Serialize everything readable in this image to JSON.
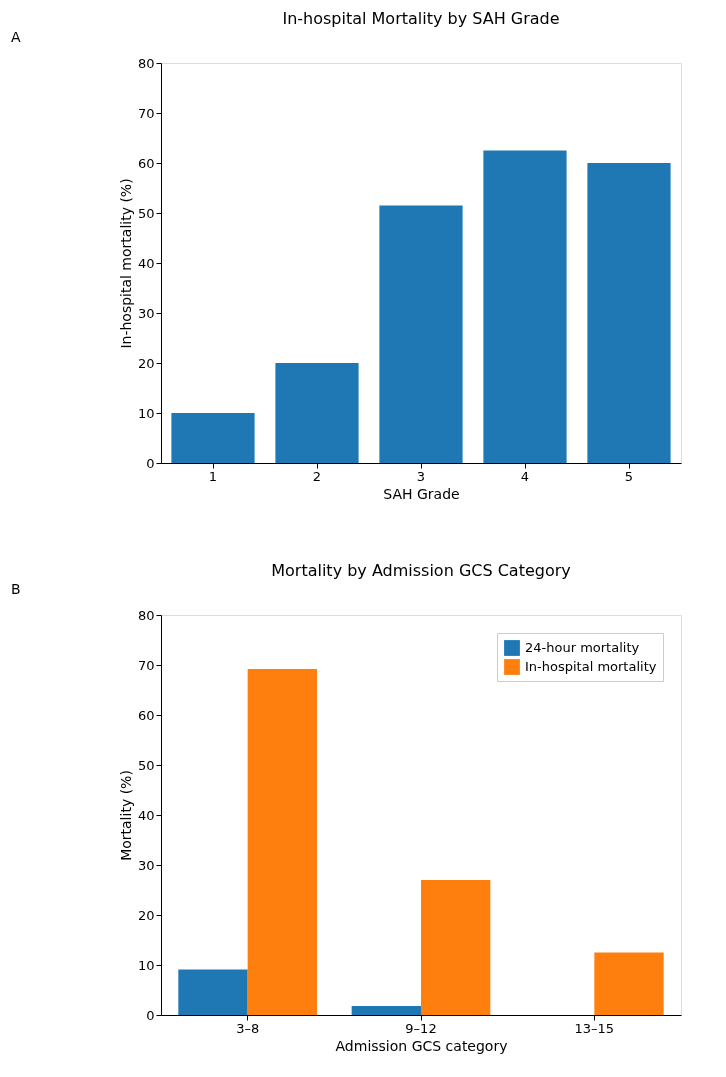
{
  "chart_data": [
    {
      "type": "bar",
      "title": "In-hospital Mortality by SAH Grade",
      "xlabel": "SAH Grade",
      "ylabel": "In-hospital mortality (%)",
      "annotations": [
        "A"
      ],
      "categories": [
        "1",
        "2",
        "3",
        "4",
        "5"
      ],
      "values": [
        10,
        20,
        51.5,
        62.5,
        60
      ],
      "color": "#1f77b4",
      "ylim": [
        0,
        80
      ],
      "yticks": [
        0,
        10,
        20,
        30,
        40,
        50,
        60,
        70,
        80
      ],
      "grid": false,
      "legend": false
    },
    {
      "type": "bar",
      "title": "Mortality by Admission GCS Category",
      "xlabel": "Admission GCS category",
      "ylabel": "Mortality (%)",
      "annotations": [
        "B"
      ],
      "categories": [
        "3–8",
        "9–12",
        "13–15"
      ],
      "series": [
        {
          "name": "24-hour mortality",
          "color": "#1f77b4",
          "values": [
            9.1,
            1.8,
            0
          ]
        },
        {
          "name": "In-hospital mortality",
          "color": "#ff7f0e",
          "values": [
            69.2,
            27.0,
            12.5
          ]
        }
      ],
      "ylim": [
        0,
        80
      ],
      "yticks": [
        0,
        10,
        20,
        30,
        40,
        50,
        60,
        70,
        80
      ],
      "grid": false,
      "legend": "top right"
    }
  ]
}
